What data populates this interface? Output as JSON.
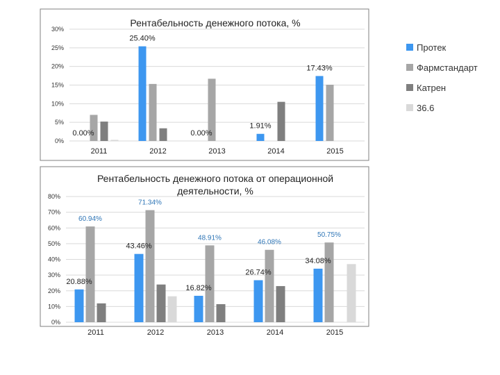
{
  "chart_data": [
    {
      "type": "bar",
      "title": "Рентабельность денежного потока, %",
      "categories": [
        "2011",
        "2012",
        "2013",
        "2014",
        "2015"
      ],
      "yticks": [
        "0%",
        "5%",
        "10%",
        "15%",
        "20%",
        "25%",
        "30%"
      ],
      "ylim": [
        0,
        30
      ],
      "series": [
        {
          "name": "Протек",
          "color": "#3d97f0",
          "values": [
            0,
            25.4,
            0,
            1.91,
            17.43
          ]
        },
        {
          "name": "Фармстандарт",
          "color": "#a6a6a6",
          "values": [
            7,
            15.3,
            16.7,
            0,
            15.1
          ]
        },
        {
          "name": "Катрен",
          "color": "#7f7f7f",
          "values": [
            5.2,
            3.4,
            0,
            10.5,
            0
          ]
        },
        {
          "name": "36.6",
          "color": "#d9d9d9",
          "values": [
            0.3,
            0,
            0,
            0,
            0
          ]
        }
      ],
      "data_labels": [
        {
          "text": "0.00%",
          "category": 0,
          "series": 0,
          "style": "black"
        },
        {
          "text": "25.40%",
          "category": 1,
          "series": 0,
          "style": "black"
        },
        {
          "text": "0.00%",
          "category": 2,
          "series": 0,
          "style": "black"
        },
        {
          "text": "1.91%",
          "category": 3,
          "series": 0,
          "style": "black"
        },
        {
          "text": "17.43%",
          "category": 4,
          "series": 0,
          "style": "black"
        }
      ],
      "legend": "right"
    },
    {
      "type": "bar",
      "title": "Рентабельность денежного потока от операционной деятельности, %",
      "title_lines": [
        "Рентабельность денежного потока от операционной",
        "деятельности, %"
      ],
      "categories": [
        "2011",
        "2012",
        "2013",
        "2014",
        "2015"
      ],
      "yticks": [
        "0%",
        "10%",
        "20%",
        "30%",
        "40%",
        "50%",
        "60%",
        "70%",
        "80%"
      ],
      "ylim": [
        0,
        80
      ],
      "series": [
        {
          "name": "Протек",
          "color": "#3d97f0",
          "values": [
            20.88,
            43.46,
            16.82,
            26.74,
            34.08
          ]
        },
        {
          "name": "Фармстандарт",
          "color": "#a6a6a6",
          "values": [
            60.94,
            71.34,
            48.91,
            46.08,
            50.75
          ]
        },
        {
          "name": "Катрен",
          "color": "#7f7f7f",
          "values": [
            12,
            24,
            11.5,
            23,
            0
          ]
        },
        {
          "name": "36.6",
          "color": "#d9d9d9",
          "values": [
            0,
            16.5,
            0,
            0,
            37
          ]
        }
      ],
      "data_labels": [
        {
          "text": "20.88%",
          "category": 0,
          "series": 0,
          "style": "black"
        },
        {
          "text": "60.94%",
          "category": 0,
          "series": 1,
          "style": "blue"
        },
        {
          "text": "43.46%",
          "category": 1,
          "series": 0,
          "style": "black"
        },
        {
          "text": "71.34%",
          "category": 1,
          "series": 1,
          "style": "blue"
        },
        {
          "text": "16.82%",
          "category": 2,
          "series": 0,
          "style": "black"
        },
        {
          "text": "48.91%",
          "category": 2,
          "series": 1,
          "style": "blue"
        },
        {
          "text": "26.74%",
          "category": 3,
          "series": 0,
          "style": "black"
        },
        {
          "text": "46.08%",
          "category": 3,
          "series": 1,
          "style": "blue"
        },
        {
          "text": "34.08%",
          "category": 4,
          "series": 0,
          "style": "black"
        },
        {
          "text": "50.75%",
          "category": 4,
          "series": 1,
          "style": "blue"
        }
      ],
      "legend": "none"
    }
  ]
}
